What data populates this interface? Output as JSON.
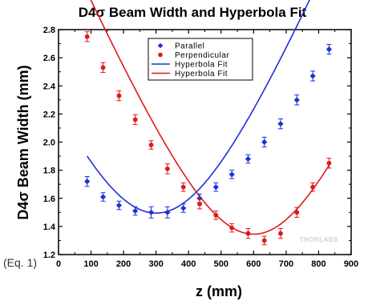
{
  "chart_data": {
    "type": "scatter",
    "title": "D4σ Beam Width and Hyperbola Fit",
    "xlabel": "z (mm)",
    "ylabel": "D4σ Beam Width (mm)",
    "xlim": [
      0,
      900
    ],
    "ylim": [
      1.2,
      2.8
    ],
    "xticks": [
      "0",
      "100",
      "200",
      "300",
      "400",
      "500",
      "600",
      "700",
      "800",
      "900"
    ],
    "yticks": [
      "1.2",
      "1.4",
      "1.6",
      "1.8",
      "2.0",
      "2.2",
      "2.4",
      "2.6",
      "2.8"
    ],
    "legend_position": "top-right",
    "grid": false,
    "series": [
      {
        "name": "Parallel",
        "color": "#1f2fd8",
        "marker": "diamond",
        "x": [
          88,
          137,
          186,
          236,
          285,
          335,
          384,
          434,
          484,
          533,
          583,
          633,
          683,
          733,
          782,
          832
        ],
        "y": [
          1.72,
          1.61,
          1.55,
          1.51,
          1.5,
          1.5,
          1.53,
          1.6,
          1.68,
          1.77,
          1.88,
          2.0,
          2.13,
          2.3,
          2.47,
          2.66
        ],
        "err": [
          0.035,
          0.03,
          0.03,
          0.03,
          0.04,
          0.04,
          0.03,
          0.03,
          0.03,
          0.03,
          0.03,
          0.035,
          0.035,
          0.035,
          0.035,
          0.035
        ]
      },
      {
        "name": "Perpendicular",
        "color": "#e01818",
        "marker": "circle",
        "x": [
          88,
          137,
          186,
          236,
          285,
          335,
          384,
          434,
          484,
          533,
          583,
          633,
          683,
          733,
          782,
          832
        ],
        "y": [
          2.75,
          2.53,
          2.33,
          2.16,
          1.98,
          1.81,
          1.68,
          1.56,
          1.48,
          1.39,
          1.35,
          1.3,
          1.35,
          1.5,
          1.68,
          1.85
        ],
        "err": [
          0.035,
          0.035,
          0.035,
          0.035,
          0.03,
          0.035,
          0.03,
          0.035,
          0.03,
          0.03,
          0.035,
          0.03,
          0.035,
          0.035,
          0.03,
          0.035
        ]
      },
      {
        "name": "Hyperbola Fit",
        "color": "#1f2fd8",
        "line": true,
        "fit": {
          "w0": 1.495,
          "z0": 300,
          "zR": 270
        }
      },
      {
        "name": "Hyperbola Fit",
        "color": "#e01818",
        "line": true,
        "fit": {
          "w0": 1.345,
          "z0": 600,
          "zR": 250
        }
      }
    ]
  },
  "annotation": "(Eq. 1)",
  "watermark": "THORLABS"
}
